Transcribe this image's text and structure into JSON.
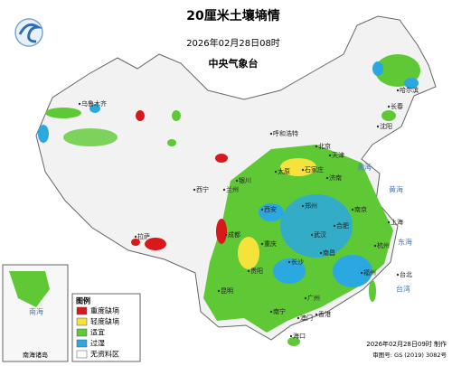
{
  "header": {
    "title": "20厘米土壤墒情",
    "time": "2026年02月28日08时",
    "agency": "中央气象台"
  },
  "legend": {
    "title": "图例",
    "items": [
      {
        "label": "重度缺墒",
        "color": "#d7191c"
      },
      {
        "label": "轻度缺墒",
        "color": "#f5e23b"
      },
      {
        "label": "适宜",
        "color": "#5ec935"
      },
      {
        "label": "过湿",
        "color": "#2ba8e0"
      },
      {
        "label": "无资料区",
        "color": "#ffffff"
      }
    ]
  },
  "inset": {
    "label": "南海诸岛",
    "sea": "南海"
  },
  "cities": [
    "哈尔滨",
    "长春",
    "沈阳",
    "呼和浩特",
    "北京",
    "天津",
    "石家庄",
    "太原",
    "济南",
    "郑州",
    "西安",
    "银川",
    "兰州",
    "西宁",
    "乌鲁木齐",
    "拉萨",
    "成都",
    "重庆",
    "贵阳",
    "昆明",
    "南宁",
    "广州",
    "香港",
    "澳门",
    "海口",
    "长沙",
    "武汉",
    "南昌",
    "合肥",
    "南京",
    "上海",
    "杭州",
    "福州",
    "台北"
  ],
  "seas": [
    "渤海",
    "黄海",
    "东海",
    "台湾"
  ],
  "footer": {
    "made": "2026年02月28日09时 制作",
    "approval": "审图号: GS (2019) 3082号"
  }
}
